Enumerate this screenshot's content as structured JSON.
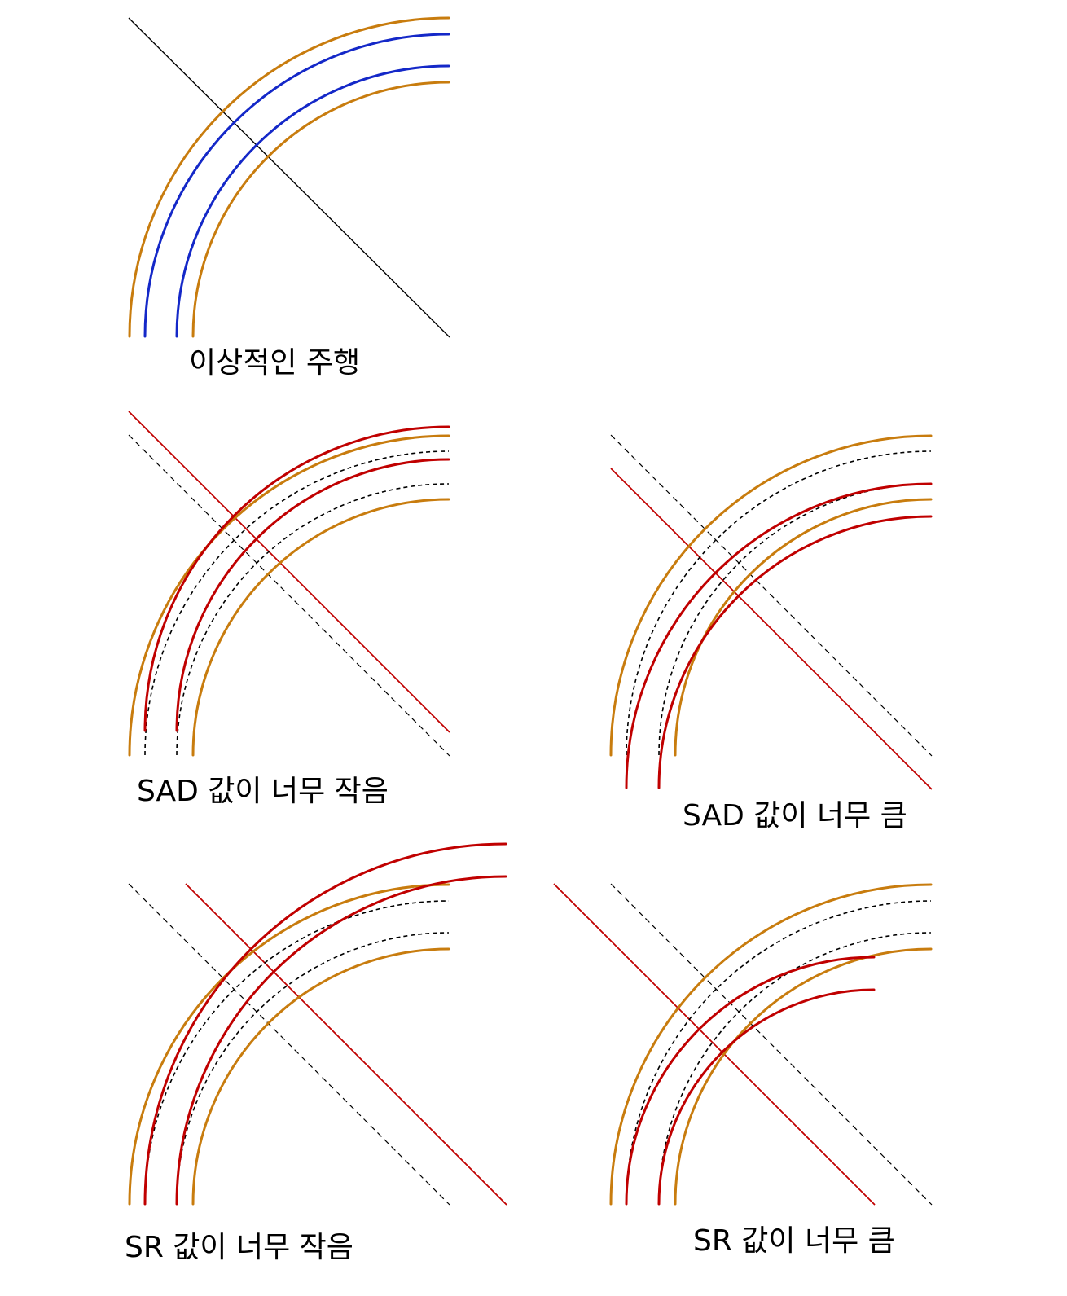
{
  "panels": [
    {
      "id": "ideal",
      "caption": "이상적인 주행"
    },
    {
      "id": "sad_small",
      "caption": "SAD 값이 너무 작음"
    },
    {
      "id": "sad_large",
      "caption": "SAD 값이 너무 큼"
    },
    {
      "id": "sr_small",
      "caption": "SR 값이 너무 작음"
    },
    {
      "id": "sr_large",
      "caption": "SR 값이 너무 큼"
    }
  ],
  "colors": {
    "lane_boundary": "#c87c0e",
    "ideal_track": "#1428c8",
    "actual_track": "#c00000",
    "reference": "#000000",
    "background": "#ffffff"
  }
}
